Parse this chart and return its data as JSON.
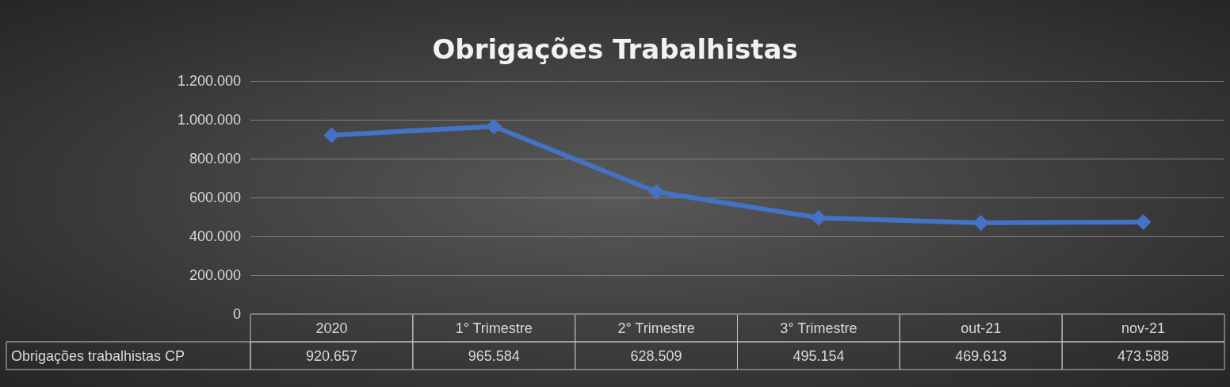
{
  "chart_data": {
    "type": "line",
    "title": "Obrigações Trabalhistas",
    "categories": [
      "2020",
      "1° Trimestre",
      "2° Trimestre",
      "3° Trimestre",
      "out-21",
      "nov-21"
    ],
    "series": [
      {
        "name": "Obrigações trabalhistas CP",
        "color": "#4472c4",
        "values": [
          920657,
          965584,
          628509,
          495154,
          469613,
          473588
        ],
        "value_labels": [
          "920.657",
          "965.584",
          "628.509",
          "495.154",
          "469.613",
          "473.588"
        ]
      }
    ],
    "ylim": [
      0,
      1200000
    ],
    "yticks": [
      {
        "value": 0,
        "label": "0"
      },
      {
        "value": 200000,
        "label": "200.000"
      },
      {
        "value": 400000,
        "label": "400.000"
      },
      {
        "value": 600000,
        "label": "600.000"
      },
      {
        "value": 800000,
        "label": "800.000"
      },
      {
        "value": 1000000,
        "label": "1.000.000"
      },
      {
        "value": 1200000,
        "label": "1.200.000"
      }
    ],
    "grid": "y",
    "marker": "diamond",
    "line_style": "solid",
    "legend": false
  }
}
